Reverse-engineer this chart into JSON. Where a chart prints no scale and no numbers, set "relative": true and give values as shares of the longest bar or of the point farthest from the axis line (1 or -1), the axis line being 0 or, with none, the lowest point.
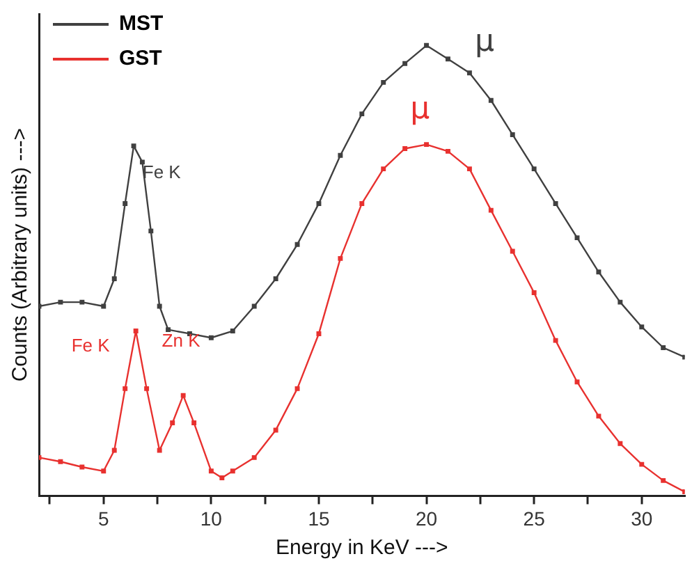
{
  "chart_data": {
    "type": "line",
    "relative": true,
    "xlabel": "Energy in KeV --->",
    "ylabel": "Counts (Arbitrary units) --->",
    "xlim": [
      2,
      32
    ],
    "xticks": [
      {
        "value": 2.5,
        "label": null
      },
      5,
      {
        "value": 7.5,
        "label": null
      },
      10,
      {
        "value": 12.5,
        "label": null
      },
      15,
      {
        "value": 17.5,
        "label": null
      },
      20,
      {
        "value": 22.5,
        "label": null
      },
      25,
      {
        "value": 27.5,
        "label": null
      },
      30
    ],
    "x": [
      2,
      3,
      4,
      5,
      5.5,
      6,
      6.4,
      6.8,
      7.2,
      7.6,
      8,
      9,
      10,
      11,
      12,
      13,
      14,
      15,
      16,
      17,
      18,
      19,
      20,
      21,
      22,
      23,
      24,
      25,
      26,
      27,
      28,
      29,
      30,
      31,
      32
    ],
    "series": [
      {
        "name": "MST",
        "color": "#404040",
        "values": [
          0.421,
          0.43,
          0.43,
          0.421,
          0.482,
          0.649,
          0.777,
          0.741,
          0.588,
          0.421,
          0.369,
          0.36,
          0.351,
          0.366,
          0.421,
          0.482,
          0.558,
          0.649,
          0.756,
          0.848,
          0.918,
          0.96,
          1,
          0.97,
          0.939,
          0.878,
          0.802,
          0.726,
          0.649,
          0.573,
          0.497,
          0.43,
          0.375,
          0.329,
          0.308
        ]
      },
      {
        "name": "GST",
        "color": "#e8312f",
        "x": [
          2,
          3,
          4,
          5,
          5.5,
          6,
          6.5,
          7,
          7.6,
          8.2,
          8.7,
          9.2,
          10,
          10.5,
          11,
          12,
          13,
          14,
          15,
          16,
          17,
          18,
          19,
          20,
          21,
          22,
          23,
          24,
          25,
          26,
          27,
          28,
          29,
          30,
          31,
          32
        ],
        "values": [
          0.085,
          0.076,
          0.064,
          0.055,
          0.101,
          0.238,
          0.366,
          0.238,
          0.101,
          0.162,
          0.223,
          0.162,
          0.055,
          0.04,
          0.055,
          0.085,
          0.146,
          0.238,
          0.36,
          0.527,
          0.649,
          0.726,
          0.771,
          0.78,
          0.765,
          0.726,
          0.634,
          0.543,
          0.451,
          0.345,
          0.253,
          0.177,
          0.116,
          0.07,
          0.034,
          0.009
        ]
      }
    ],
    "annotations": [
      "Fe K",
      "Fe K",
      "Zn K",
      "μ",
      "μ"
    ],
    "legend": "top left",
    "marker": "square",
    "line_style": "solid",
    "grid": false,
    "tick_labels": "x"
  }
}
